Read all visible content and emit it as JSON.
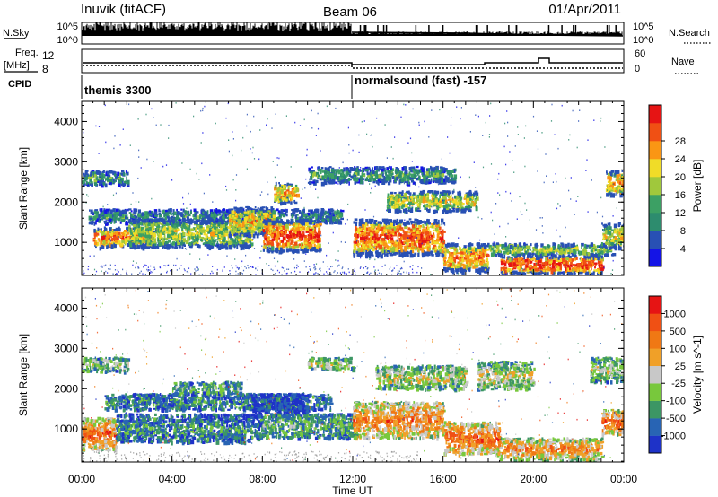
{
  "header": {
    "station": "Inuvik (fitACF)",
    "beam": "Beam 06",
    "date": "01/Apr/2011"
  },
  "top_panels": {
    "nsky_label": "N.Sky",
    "nsky_ticks": [
      "10^5",
      "10^0"
    ],
    "nsearch_label": "N.Search",
    "nsearch_ticks": [
      "10^5",
      "10^0"
    ],
    "freq_label": "Freq.",
    "freq_unit": "[MHz]",
    "freq_ticks": [
      "12",
      "8"
    ],
    "nave_label": "Nave",
    "nave_ticks": [
      "60",
      "0"
    ],
    "cpid_label": "CPID",
    "cpid_segments": [
      {
        "label": "themis 3300",
        "start_hour": 0
      },
      {
        "label": "normalsound (fast) -157",
        "start_hour": 12
      }
    ]
  },
  "chart_data": [
    {
      "type": "heatmap",
      "title": "",
      "xlabel": "Time UT",
      "ylabel": "Slant Range [km]",
      "xlim_hours": [
        0,
        24
      ],
      "x_ticks": [
        "00:00",
        "04:00",
        "08:00",
        "12:00",
        "16:00",
        "20:00",
        "00:00"
      ],
      "ylim": [
        180,
        4500
      ],
      "y_ticks": [
        1000,
        2000,
        3000,
        4000
      ],
      "colorbar": {
        "label": "Power [dB]",
        "ticks": [
          "4",
          "8",
          "12",
          "16",
          "20",
          "24",
          "28"
        ],
        "colors": [
          "#1414e6",
          "#2850b4",
          "#2d8c6e",
          "#3ca064",
          "#a0c83c",
          "#f0dc28",
          "#fa9614",
          "#f05014",
          "#e61414"
        ]
      },
      "echo_bands": [
        {
          "t0": 0.0,
          "t1": 2.0,
          "r0": 2450,
          "r1": 2800,
          "level": 0.35
        },
        {
          "t0": 0.3,
          "t1": 11.5,
          "r0": 1500,
          "r1": 1850,
          "level": 0.3
        },
        {
          "t0": 0.5,
          "t1": 3.0,
          "r0": 900,
          "r1": 1400,
          "level": 0.85
        },
        {
          "t0": 2.0,
          "t1": 7.5,
          "r0": 900,
          "r1": 1600,
          "level": 0.55
        },
        {
          "t0": 6.5,
          "t1": 8.5,
          "r0": 1200,
          "r1": 1900,
          "level": 0.7
        },
        {
          "t0": 8.0,
          "t1": 10.5,
          "r0": 800,
          "r1": 1600,
          "level": 0.9
        },
        {
          "t0": 8.5,
          "t1": 9.5,
          "r0": 2000,
          "r1": 2500,
          "level": 0.75
        },
        {
          "t0": 10.0,
          "t1": 16.5,
          "r0": 2500,
          "r1": 2900,
          "level": 0.35
        },
        {
          "t0": 12.0,
          "t1": 16.0,
          "r0": 700,
          "r1": 1600,
          "level": 0.88
        },
        {
          "t0": 13.5,
          "t1": 17.5,
          "r0": 1800,
          "r1": 2300,
          "level": 0.6
        },
        {
          "t0": 16.0,
          "t1": 18.0,
          "r0": 300,
          "r1": 1000,
          "level": 0.8
        },
        {
          "t0": 18.5,
          "t1": 23.0,
          "r0": 250,
          "r1": 700,
          "level": 0.95
        },
        {
          "t0": 18.0,
          "t1": 23.5,
          "r0": 700,
          "r1": 1000,
          "level": 0.5
        },
        {
          "t0": 23.2,
          "t1": 24.0,
          "r0": 2200,
          "r1": 2800,
          "level": 0.75
        },
        {
          "t0": 23.0,
          "t1": 24.0,
          "r0": 900,
          "r1": 1500,
          "level": 0.6
        }
      ]
    },
    {
      "type": "heatmap",
      "title": "",
      "xlabel": "Time UT",
      "ylabel": "Slant Range [km]",
      "xlim_hours": [
        0,
        24
      ],
      "x_ticks": [
        "00:00",
        "04:00",
        "08:00",
        "12:00",
        "16:00",
        "20:00",
        "00:00"
      ],
      "ylim": [
        180,
        4500
      ],
      "y_ticks": [
        1000,
        2000,
        3000,
        4000
      ],
      "colorbar": {
        "label": "Velocity [m s^-1]",
        "ticks": [
          "1000",
          "500",
          "100",
          "25",
          "-25",
          "-100",
          "-500",
          "-1000"
        ],
        "colors": [
          "#1e32c8",
          "#2864b4",
          "#3c9664",
          "#78c83c",
          "#c8c8c8",
          "#f0a028",
          "#f07814",
          "#f05014",
          "#e61414"
        ]
      },
      "echo_bands": [
        {
          "t0": 0.0,
          "t1": 2.0,
          "r0": 2450,
          "r1": 2800,
          "level": 0.45
        },
        {
          "t0": 1.0,
          "t1": 11.0,
          "r0": 1500,
          "r1": 1900,
          "level": 0.25
        },
        {
          "t0": 7.5,
          "t1": 10.0,
          "r0": 1400,
          "r1": 1900,
          "level": 0.08
        },
        {
          "t0": 0.0,
          "t1": 1.5,
          "r0": 500,
          "r1": 1300,
          "level": 0.8
        },
        {
          "t0": 1.5,
          "t1": 8.0,
          "r0": 700,
          "r1": 1400,
          "level": 0.25
        },
        {
          "t0": 4.0,
          "t1": 7.0,
          "r0": 1900,
          "r1": 2200,
          "level": 0.35
        },
        {
          "t0": 8.0,
          "t1": 12.0,
          "r0": 800,
          "r1": 1400,
          "level": 0.35
        },
        {
          "t0": 10.0,
          "t1": 12.0,
          "r0": 2500,
          "r1": 2800,
          "level": 0.5
        },
        {
          "t0": 12.0,
          "t1": 16.0,
          "r0": 800,
          "r1": 1700,
          "level": 0.75
        },
        {
          "t0": 13.0,
          "t1": 17.0,
          "r0": 2000,
          "r1": 2600,
          "level": 0.5
        },
        {
          "t0": 16.0,
          "t1": 18.5,
          "r0": 400,
          "r1": 1200,
          "level": 0.8
        },
        {
          "t0": 17.5,
          "t1": 20.0,
          "r0": 2000,
          "r1": 2700,
          "level": 0.5
        },
        {
          "t0": 18.5,
          "t1": 23.0,
          "r0": 250,
          "r1": 800,
          "level": 0.7
        },
        {
          "t0": 22.5,
          "t1": 24.0,
          "r0": 2200,
          "r1": 2800,
          "level": 0.45
        },
        {
          "t0": 23.0,
          "t1": 24.0,
          "r0": 900,
          "r1": 1500,
          "level": 0.85
        }
      ]
    }
  ]
}
